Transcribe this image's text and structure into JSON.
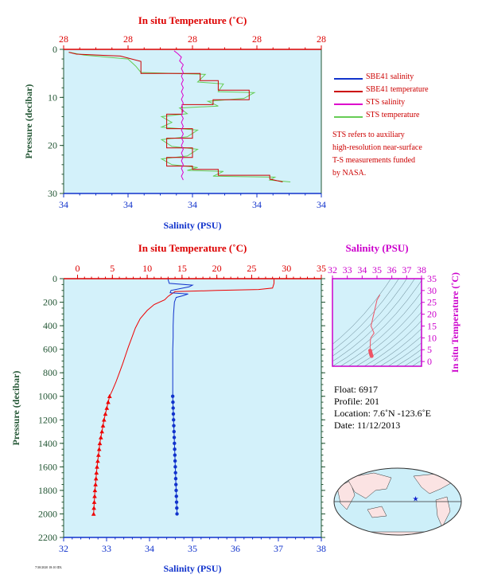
{
  "chart_data": [
    {
      "type": "line",
      "top_axis_label": "In situ Temperature (˚C)",
      "top_tick_labels": [
        "28",
        "28",
        "28",
        "28",
        "28"
      ],
      "bottom_axis_label": "Salinity (PSU)",
      "bottom_tick_labels": [
        "34",
        "34",
        "34",
        "34",
        "34"
      ],
      "ylabel": "Pressure (decibar)",
      "y_tick_labels": [
        "0",
        "10",
        "20",
        "30"
      ],
      "ylim": [
        30,
        0
      ],
      "series": [
        {
          "name": "SBE41 salinity",
          "color": "#1133cc",
          "values": [
            [
              34.93,
              1.5
            ],
            [
              34.93,
              3
            ],
            [
              34.92,
              4.5
            ],
            [
              34.93,
              6
            ],
            [
              34.92,
              7.5
            ],
            [
              34.93,
              9
            ],
            [
              34.92,
              10.5
            ],
            [
              34.93,
              12
            ],
            [
              34.92,
              13.5
            ],
            [
              34.93,
              15
            ],
            [
              34.92,
              16.5
            ],
            [
              34.93,
              18
            ],
            [
              34.92,
              19.5
            ],
            [
              34.93,
              21
            ],
            [
              34.92,
              22.5
            ],
            [
              34.93,
              24
            ],
            [
              34.92,
              25.5
            ],
            [
              34.93,
              27
            ],
            [
              34.92,
              28.5
            ]
          ]
        },
        {
          "name": "SBE41 temperature",
          "color": "#cc0000",
          "values": [
            [
              0.02,
              0.6
            ],
            [
              0.05,
              1.0
            ],
            [
              0.22,
              1.4
            ],
            [
              0.3,
              2.5
            ],
            [
              0.3,
              5.0
            ],
            [
              0.53,
              5.0
            ],
            [
              0.53,
              6.5
            ],
            [
              0.6,
              6.5
            ],
            [
              0.6,
              8.5
            ],
            [
              0.72,
              8.5
            ],
            [
              0.72,
              10.5
            ],
            [
              0.58,
              10.5
            ],
            [
              0.58,
              11.5
            ],
            [
              0.46,
              11.5
            ],
            [
              0.46,
              13.5
            ],
            [
              0.4,
              13.5
            ],
            [
              0.4,
              14.8
            ],
            [
              0.4,
              16.5
            ],
            [
              0.5,
              16.5
            ],
            [
              0.5,
              18.5
            ],
            [
              0.4,
              18.5
            ],
            [
              0.4,
              20.5
            ],
            [
              0.5,
              20.5
            ],
            [
              0.5,
              22.5
            ],
            [
              0.4,
              22.5
            ],
            [
              0.4,
              24.3
            ],
            [
              0.5,
              24.3
            ],
            [
              0.5,
              25.0
            ],
            [
              0.6,
              25.0
            ],
            [
              0.6,
              26.2
            ],
            [
              0.8,
              26.2
            ],
            [
              0.8,
              27.0
            ],
            [
              0.85,
              27.6
            ]
          ]
        },
        {
          "name": "STS salinity",
          "color": "#dd00cc",
          "values": [
            [
              34.6,
              0.3
            ],
            [
              34.62,
              0.9
            ],
            [
              34.64,
              1.6
            ],
            [
              34.63,
              2.4
            ],
            [
              34.65,
              3.2
            ],
            [
              34.64,
              4.0
            ],
            [
              34.65,
              4.8
            ],
            [
              34.64,
              5.6
            ],
            [
              34.65,
              6.4
            ],
            [
              34.64,
              7.2
            ],
            [
              34.65,
              8.0
            ],
            [
              34.64,
              8.8
            ],
            [
              34.65,
              9.6
            ],
            [
              34.64,
              10.4
            ],
            [
              34.65,
              11.2
            ],
            [
              34.64,
              12.0
            ],
            [
              34.65,
              12.8
            ],
            [
              34.64,
              13.6
            ],
            [
              34.65,
              14.4
            ],
            [
              34.64,
              15.2
            ],
            [
              34.65,
              16.0
            ],
            [
              34.64,
              16.8
            ],
            [
              34.65,
              17.6
            ],
            [
              34.64,
              18.4
            ],
            [
              34.65,
              19.2
            ],
            [
              34.64,
              20.0
            ],
            [
              34.65,
              20.8
            ],
            [
              34.64,
              21.6
            ],
            [
              34.65,
              22.4
            ],
            [
              34.64,
              23.2
            ],
            [
              34.65,
              24.0
            ],
            [
              34.64,
              24.8
            ],
            [
              34.65,
              25.6
            ],
            [
              34.64,
              26.4
            ],
            [
              34.65,
              27.2
            ]
          ]
        },
        {
          "name": "STS temperature",
          "color": "#66cc55",
          "values": [
            [
              0.02,
              0.6
            ],
            [
              0.08,
              1.2
            ],
            [
              0.25,
              2.0
            ],
            [
              0.28,
              3.5
            ],
            [
              0.3,
              4.8
            ],
            [
              0.55,
              5.2
            ],
            [
              0.52,
              6.8
            ],
            [
              0.62,
              7.2
            ],
            [
              0.6,
              8.8
            ],
            [
              0.74,
              9.0
            ],
            [
              0.7,
              10.2
            ],
            [
              0.56,
              10.8
            ],
            [
              0.6,
              11.8
            ],
            [
              0.45,
              12.2
            ],
            [
              0.48,
              13.4
            ],
            [
              0.38,
              14.0
            ],
            [
              0.42,
              15.2
            ],
            [
              0.38,
              16.2
            ],
            [
              0.52,
              16.8
            ],
            [
              0.48,
              18.2
            ],
            [
              0.38,
              18.8
            ],
            [
              0.42,
              20.2
            ],
            [
              0.52,
              20.8
            ],
            [
              0.48,
              22.2
            ],
            [
              0.38,
              22.8
            ],
            [
              0.42,
              24.0
            ],
            [
              0.52,
              24.6
            ],
            [
              0.48,
              25.2
            ],
            [
              0.62,
              25.4
            ],
            [
              0.58,
              26.4
            ],
            [
              0.82,
              26.6
            ],
            [
              0.8,
              27.2
            ],
            [
              0.88,
              27.6
            ]
          ]
        }
      ],
      "legend": {
        "items": [
          "SBE41 salinity",
          "SBE41 temperature",
          "STS salinity",
          "STS temperature"
        ],
        "colors": [
          "#1133cc",
          "#cc0000",
          "#dd00cc",
          "#66cc55"
        ],
        "placement": "right"
      },
      "note": [
        "STS refers to auxiliary",
        "high-resolution near-surface",
        "T-S measurements funded",
        "by NASA."
      ]
    },
    {
      "type": "line",
      "top_axis_label": "In situ Temperature (˚C)",
      "top_tick_labels": [
        "0",
        "5",
        "10",
        "15",
        "20",
        "25",
        "30",
        "35"
      ],
      "xlim_top": [
        -2,
        35
      ],
      "bottom_axis_label": "Salinity (PSU)",
      "bottom_tick_labels": [
        "32",
        "33",
        "34",
        "35",
        "36",
        "37",
        "38"
      ],
      "xlim_bottom": [
        32,
        38
      ],
      "ylabel": "Pressure (decibar)",
      "y_tick_labels": [
        "0",
        "200",
        "400",
        "600",
        "800",
        "1000",
        "1200",
        "1400",
        "1600",
        "1800",
        "2000",
        "2200"
      ],
      "ylim": [
        2200,
        0
      ],
      "series": [
        {
          "name": "Temperature",
          "color": "#ee0000",
          "values": [
            [
              28.2,
              5
            ],
            [
              28.2,
              40
            ],
            [
              28.0,
              80
            ],
            [
              26,
              92
            ],
            [
              20,
              100
            ],
            [
              14,
              110
            ],
            [
              13.5,
              130
            ],
            [
              13,
              150
            ],
            [
              12.5,
              180
            ],
            [
              11,
              220
            ],
            [
              10,
              270
            ],
            [
              9,
              340
            ],
            [
              8.3,
              420
            ],
            [
              7.8,
              500
            ],
            [
              7.3,
              580
            ],
            [
              6.9,
              650
            ],
            [
              6.5,
              720
            ],
            [
              6.0,
              800
            ],
            [
              5.5,
              880
            ],
            [
              5.0,
              950
            ],
            [
              4.6,
              1000
            ]
          ],
          "markers": [
            [
              4.6,
              1000
            ],
            [
              4.4,
              1050
            ],
            [
              4.2,
              1100
            ],
            [
              4.0,
              1150
            ],
            [
              3.8,
              1200
            ],
            [
              3.65,
              1250
            ],
            [
              3.5,
              1300
            ],
            [
              3.35,
              1350
            ],
            [
              3.2,
              1400
            ],
            [
              3.1,
              1450
            ],
            [
              3.0,
              1500
            ],
            [
              2.9,
              1550
            ],
            [
              2.8,
              1600
            ],
            [
              2.72,
              1650
            ],
            [
              2.65,
              1700
            ],
            [
              2.58,
              1750
            ],
            [
              2.5,
              1800
            ],
            [
              2.45,
              1850
            ],
            [
              2.4,
              1900
            ],
            [
              2.35,
              1950
            ],
            [
              2.3,
              2000
            ]
          ]
        },
        {
          "name": "Salinity",
          "color": "#1133cc",
          "values": [
            [
              34.43,
              5
            ],
            [
              34.46,
              40
            ],
            [
              35.0,
              55
            ],
            [
              34.92,
              70
            ],
            [
              34.5,
              100
            ],
            [
              34.48,
              120
            ],
            [
              34.9,
              130
            ],
            [
              34.78,
              145
            ],
            [
              34.62,
              160
            ],
            [
              34.58,
              200
            ],
            [
              34.56,
              300
            ],
            [
              34.55,
              400
            ],
            [
              34.55,
              500
            ],
            [
              34.54,
              600
            ],
            [
              34.54,
              700
            ],
            [
              34.54,
              800
            ],
            [
              34.54,
              900
            ],
            [
              34.54,
              1000
            ]
          ],
          "markers": [
            [
              34.54,
              1000
            ],
            [
              34.545,
              1050
            ],
            [
              34.55,
              1100
            ],
            [
              34.555,
              1150
            ],
            [
              34.56,
              1200
            ],
            [
              34.565,
              1250
            ],
            [
              34.57,
              1300
            ],
            [
              34.575,
              1350
            ],
            [
              34.58,
              1400
            ],
            [
              34.585,
              1450
            ],
            [
              34.59,
              1500
            ],
            [
              34.595,
              1550
            ],
            [
              34.6,
              1600
            ],
            [
              34.605,
              1650
            ],
            [
              34.61,
              1700
            ],
            [
              34.615,
              1750
            ],
            [
              34.62,
              1800
            ],
            [
              34.625,
              1850
            ],
            [
              34.63,
              1900
            ],
            [
              34.635,
              1950
            ],
            [
              34.64,
              2000
            ]
          ]
        }
      ]
    },
    {
      "type": "scatter",
      "top_axis_label": "Salinity (PSU)",
      "x_tick_labels": [
        "32",
        "33",
        "34",
        "35",
        "36",
        "37",
        "38"
      ],
      "xlim": [
        32,
        38
      ],
      "right_axis_label": "In situ Temperature (˚C)",
      "y_tick_labels": [
        "0",
        "5",
        "10",
        "15",
        "20",
        "25",
        "30",
        "35"
      ],
      "ylim": [
        -2,
        35
      ],
      "series": [
        {
          "name": "T-S",
          "color": "#ee5566",
          "values": [
            [
              35.2,
              28.2
            ],
            [
              35.0,
              26.0
            ],
            [
              34.6,
              15
            ],
            [
              34.8,
              12
            ],
            [
              34.58,
              10
            ],
            [
              34.56,
              9
            ],
            [
              34.55,
              8.3
            ],
            [
              34.55,
              7.3
            ],
            [
              34.54,
              6.5
            ],
            [
              34.54,
              5.5
            ],
            [
              34.54,
              4.6
            ],
            [
              34.56,
              4.0
            ],
            [
              34.58,
              3.5
            ],
            [
              34.6,
              3.0
            ],
            [
              34.62,
              2.6
            ],
            [
              34.64,
              2.3
            ]
          ]
        }
      ]
    }
  ],
  "float_info": {
    "float": "Float:  6917",
    "profile": "Profile:  201",
    "location": "Location:  7.6˚N  -123.6˚E",
    "date": "Date:  11/12/2013"
  },
  "map": {
    "marker_lat": 7.6,
    "marker_lon": -123.6,
    "marker_color": "#1122cc"
  },
  "stamp": "7/30/2020 18:10 IDL",
  "colors": {
    "plot_bg": "#d3f1fa",
    "axis_red": "#dd0000",
    "axis_blue": "#1133cc",
    "axis_green": "#225533",
    "axis_magenta": "#cc00cc"
  }
}
